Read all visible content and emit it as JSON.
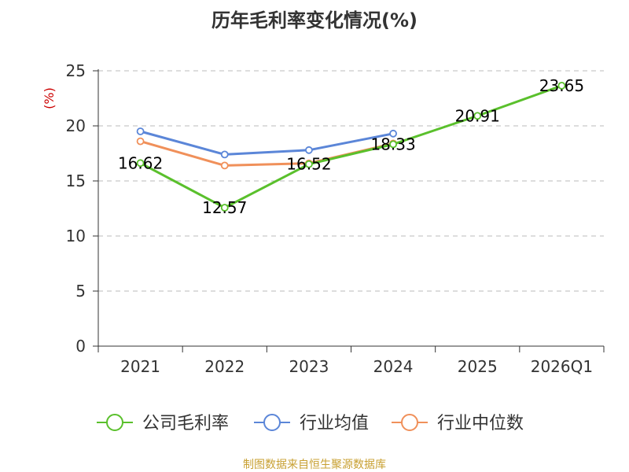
{
  "chart_data": {
    "type": "line",
    "title": "历年毛利率变化情况(%)",
    "ylabel": "(%)",
    "xlabel": "",
    "categories": [
      "2021",
      "2022",
      "2023",
      "2024",
      "2025",
      "2026Q1"
    ],
    "ylim": [
      0,
      25
    ],
    "yticks": [
      0,
      5,
      10,
      15,
      20,
      25
    ],
    "grid": true,
    "legend_position": "bottom",
    "series": [
      {
        "name": "公司毛利率",
        "color": "#5ac02c",
        "values": [
          16.62,
          12.57,
          16.52,
          18.33,
          20.91,
          23.65
        ],
        "labels": [
          "16.62",
          "12.57",
          "16.52",
          "18.33",
          "20.91",
          "23.65"
        ]
      },
      {
        "name": "行业均值",
        "color": "#5b86d8",
        "values": [
          19.5,
          17.4,
          17.8,
          19.3,
          null,
          null
        ]
      },
      {
        "name": "行业中位数",
        "color": "#f0905a",
        "values": [
          18.6,
          16.4,
          16.6,
          18.4,
          null,
          null
        ]
      }
    ]
  },
  "source": "制图数据来自恒生聚源数据库"
}
